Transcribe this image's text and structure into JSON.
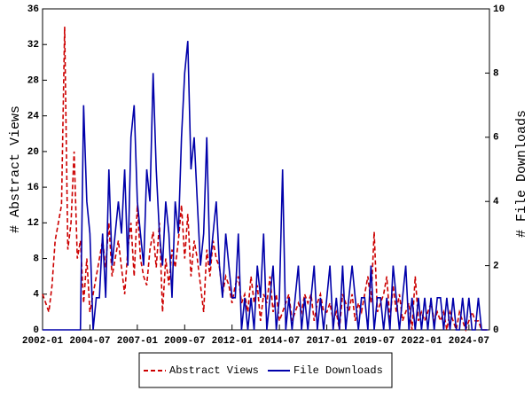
{
  "chart_data": {
    "type": "line",
    "ylabel": "# Abstract Views",
    "y2label": "# File Downloads",
    "x": [
      "2002-01",
      "2002-03",
      "2002-05",
      "2002-07",
      "2002-09",
      "2002-11",
      "2003-01",
      "2003-03",
      "2003-05",
      "2003-07",
      "2003-09",
      "2003-11",
      "2004-01",
      "2004-03",
      "2004-05",
      "2004-07",
      "2004-09",
      "2004-11",
      "2005-01",
      "2005-03",
      "2005-05",
      "2005-07",
      "2005-09",
      "2005-11",
      "2006-01",
      "2006-03",
      "2006-05",
      "2006-07",
      "2006-09",
      "2006-11",
      "2007-01",
      "2007-03",
      "2007-05",
      "2007-07",
      "2007-09",
      "2007-11",
      "2008-01",
      "2008-03",
      "2008-05",
      "2008-07",
      "2008-09",
      "2008-11",
      "2009-01",
      "2009-03",
      "2009-05",
      "2009-07",
      "2009-09",
      "2009-11",
      "2010-01",
      "2010-03",
      "2010-05",
      "2010-07",
      "2010-09",
      "2010-11",
      "2011-01",
      "2011-03",
      "2011-05",
      "2011-07",
      "2011-09",
      "2011-11",
      "2012-01",
      "2012-03",
      "2012-05",
      "2012-07",
      "2012-09",
      "2012-11",
      "2013-01",
      "2013-03",
      "2013-05",
      "2013-07",
      "2013-09",
      "2013-11",
      "2014-01",
      "2014-03",
      "2014-05",
      "2014-07",
      "2014-09",
      "2014-11",
      "2015-01",
      "2015-03",
      "2015-05",
      "2015-07",
      "2015-09",
      "2015-11",
      "2016-01",
      "2016-03",
      "2016-05",
      "2016-07",
      "2016-09",
      "2016-11",
      "2017-01",
      "2017-03",
      "2017-05",
      "2017-07",
      "2017-09",
      "2017-11",
      "2018-01",
      "2018-03",
      "2018-05",
      "2018-07",
      "2018-09",
      "2018-11",
      "2019-01",
      "2019-03",
      "2019-05",
      "2019-07",
      "2019-09",
      "2019-11",
      "2020-01",
      "2020-03",
      "2020-05",
      "2020-07",
      "2020-09",
      "2020-11",
      "2021-01",
      "2021-03",
      "2021-05",
      "2021-07",
      "2021-09",
      "2021-11",
      "2022-01",
      "2022-03",
      "2022-05",
      "2022-07",
      "2022-09",
      "2022-11",
      "2023-01",
      "2023-03",
      "2023-05",
      "2023-07",
      "2023-09",
      "2023-11",
      "2024-01",
      "2024-03",
      "2024-05",
      "2024-07",
      "2024-09",
      "2024-11",
      "2025-01",
      "2025-03",
      "2025-05",
      "2025-07"
    ],
    "series": [
      {
        "name": "Abstract Views",
        "color": "#cc0000",
        "dash": true,
        "axis": "y",
        "values": [
          4,
          3,
          2,
          5,
          10,
          12,
          14,
          34,
          9,
          12,
          20,
          8,
          10,
          3,
          8,
          2,
          4,
          6,
          8,
          10,
          7,
          12,
          6,
          8,
          10,
          7,
          4,
          9,
          12,
          6,
          14,
          8,
          6,
          5,
          9,
          11,
          7,
          12,
          2,
          8,
          5,
          9,
          7,
          10,
          14,
          8,
          13,
          6,
          10,
          8,
          5,
          2,
          9,
          6,
          10,
          8,
          7,
          4,
          6,
          5,
          3,
          5,
          6,
          3,
          4,
          2,
          6,
          3,
          5,
          1,
          4,
          3,
          6,
          2,
          4,
          1,
          2,
          3,
          4,
          1,
          2,
          3,
          2,
          4,
          3,
          4,
          1,
          3,
          4,
          2,
          2,
          3,
          1,
          2,
          0,
          4,
          3,
          2,
          4,
          1,
          3,
          2,
          4,
          6,
          3,
          11,
          2,
          3,
          4,
          6,
          1,
          5,
          2,
          4,
          1,
          2,
          3,
          0,
          6,
          1,
          2,
          1,
          2,
          3,
          1,
          2,
          1,
          2,
          0,
          2,
          1,
          0,
          2,
          1,
          0,
          1,
          2,
          1,
          1,
          0,
          0,
          0
        ]
      },
      {
        "name": "File Downloads",
        "color": "#0000aa",
        "dash": false,
        "axis": "y2",
        "values": [
          0,
          0,
          0,
          0,
          0,
          0,
          0,
          0,
          0,
          0,
          0,
          0,
          0,
          7,
          4,
          3,
          0,
          1,
          1,
          3,
          1,
          5,
          2,
          3,
          4,
          3,
          5,
          2,
          6,
          7,
          4,
          3,
          2,
          5,
          4,
          8,
          5,
          3,
          2,
          4,
          3,
          1,
          4,
          3,
          6,
          8,
          9,
          5,
          6,
          4,
          2,
          3,
          6,
          2,
          3,
          4,
          2,
          1,
          3,
          2,
          1,
          1,
          3,
          0,
          1,
          0,
          1,
          0,
          2,
          1,
          3,
          0,
          1,
          2,
          0,
          1,
          5,
          0,
          1,
          0,
          1,
          2,
          0,
          1,
          0,
          1,
          2,
          0,
          1,
          0,
          1,
          2,
          0,
          1,
          0,
          2,
          0,
          1,
          2,
          1,
          0,
          1,
          1,
          0,
          2,
          0,
          1,
          1,
          0,
          1,
          0,
          2,
          1,
          0,
          1,
          2,
          0,
          1,
          0,
          1,
          0,
          1,
          0,
          1,
          0,
          1,
          1,
          0,
          1,
          0,
          1,
          0,
          0,
          1,
          0,
          1,
          0,
          0,
          1,
          0,
          0,
          0
        ]
      }
    ],
    "xlim": [
      "2002-01",
      "2025-08"
    ],
    "xticks": [
      "2002-01",
      "2004-07",
      "2007-01",
      "2009-07",
      "2012-01",
      "2014-07",
      "2017-01",
      "2019-07",
      "2022-01",
      "2024-07"
    ],
    "ylim": [
      0,
      36
    ],
    "yticks": [
      0,
      4,
      8,
      12,
      16,
      20,
      24,
      28,
      32,
      36
    ],
    "y2lim": [
      0,
      10
    ],
    "y2ticks": [
      0,
      2,
      4,
      6,
      8,
      10
    ],
    "grid": false,
    "legend": "bottom"
  }
}
